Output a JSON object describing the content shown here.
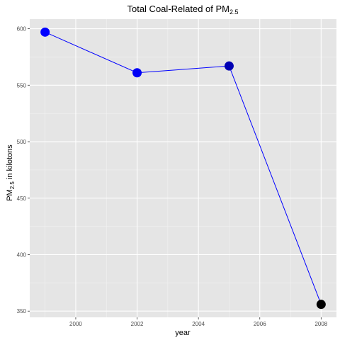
{
  "chart_data": {
    "type": "line",
    "title": {
      "main": "Total Coal-Related of PM",
      "sub": "2.5"
    },
    "xlabel": "year",
    "ylabel": {
      "pre": "PM",
      "sub": "2.5",
      "post": " in kilotons"
    },
    "x": [
      1999,
      2002,
      2005,
      2008
    ],
    "series": [
      {
        "values": [
          597,
          561,
          567,
          356
        ]
      }
    ],
    "xlim": [
      1998.5,
      2008.5
    ],
    "ylim": [
      344.5,
      608.5
    ],
    "x_ticks": [
      2000,
      2002,
      2004,
      2006,
      2008
    ],
    "y_ticks": [
      350,
      400,
      450,
      500,
      550,
      600
    ],
    "grid": true,
    "legend": "none",
    "colors": {
      "panel_background": "#e5e5e5",
      "grid_major": "#ffffff",
      "grid_minor": "#f2f2f2",
      "line": "#0000ff",
      "point_gradient": [
        "#0000ff",
        "#000000"
      ]
    }
  }
}
